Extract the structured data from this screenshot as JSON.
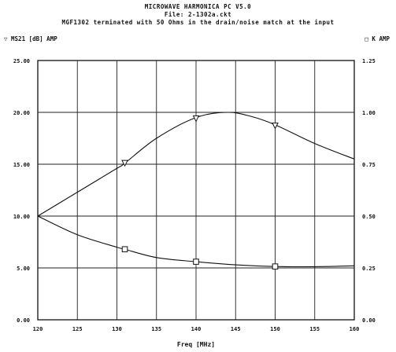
{
  "header": {
    "line1": "MICROWAVE HARMONICA PC V5.0",
    "line2": "File: 2-1302a.ckt",
    "line3": "MGF1302 terminated with 50 Ohms in the drain/noise match at the input"
  },
  "legend": {
    "left_symbol": "▽",
    "left_label": "MS21 [dB] AMP",
    "right_symbol": "□",
    "right_label": "K AMP"
  },
  "chart_data": {
    "type": "line",
    "xlabel": "Freq [MHz]",
    "x_ticks": [
      "120",
      "125",
      "130",
      "135",
      "140",
      "145",
      "150",
      "155",
      "160"
    ],
    "xlim": [
      120,
      160
    ],
    "y_left_ticks": [
      "0.00",
      "5.00",
      "10.00",
      "15.00",
      "20.00",
      "25.00"
    ],
    "ylim_left": [
      0,
      25
    ],
    "y_right_ticks": [
      "0.00",
      "0.25",
      "0.50",
      "0.75",
      "1.00",
      "1.25"
    ],
    "ylim_right": [
      0,
      1.25
    ],
    "grid": true,
    "series": [
      {
        "name": "MS21 [dB] AMP",
        "axis": "left",
        "marker": "triangle-down",
        "x": [
          120,
          125,
          130,
          131,
          135,
          140,
          144,
          147,
          150,
          155,
          160
        ],
        "values": [
          10.0,
          12.3,
          14.6,
          15.1,
          17.5,
          19.5,
          20.0,
          19.6,
          18.8,
          17.0,
          15.5
        ],
        "marker_x": [
          131,
          140,
          150
        ],
        "marker_values": [
          15.1,
          19.4,
          18.7
        ]
      },
      {
        "name": "K AMP",
        "axis": "right",
        "marker": "square",
        "x": [
          120,
          125,
          130,
          131,
          135,
          140,
          145,
          150,
          155,
          160
        ],
        "values": [
          0.5,
          0.41,
          0.35,
          0.34,
          0.3,
          0.28,
          0.265,
          0.257,
          0.256,
          0.26
        ],
        "marker_x": [
          131,
          140,
          150
        ],
        "marker_values": [
          0.34,
          0.28,
          0.257
        ]
      }
    ]
  }
}
